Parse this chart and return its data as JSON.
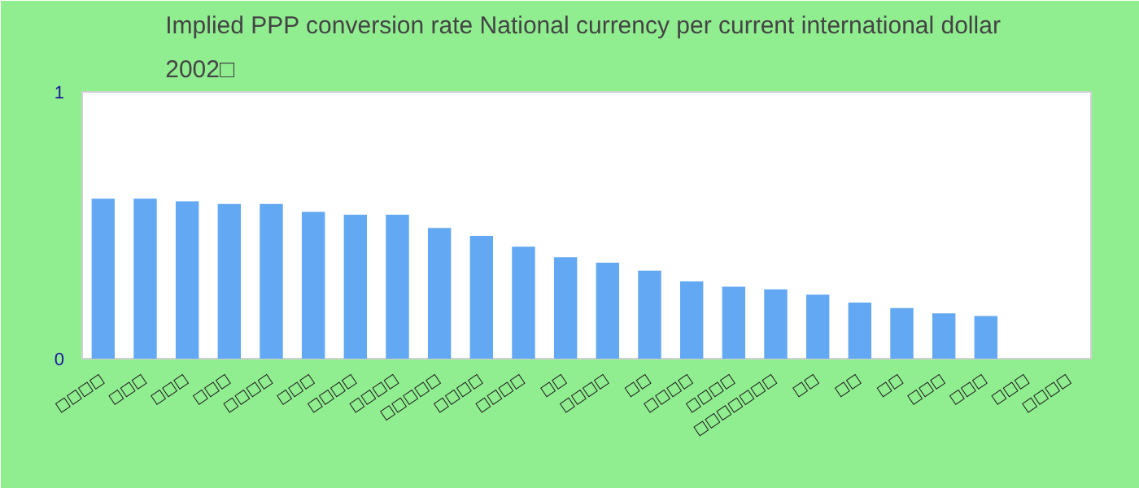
{
  "chart_data": {
    "type": "bar",
    "title": "Implied PPP conversion rate  National currency per current international dollar 2002□",
    "categories": [
      "□□□□",
      "□□□",
      "□□□",
      "□□□",
      "□□□□",
      "□□□",
      "□□□□",
      "□□□□",
      "□□□□□",
      "□□□□",
      "□□□□",
      "□□",
      "□□□□",
      "□□",
      "□□□□",
      "□□□□",
      "□□□□□□□",
      "□□",
      "□□",
      "□□",
      "□□□",
      "□□□",
      "□□□",
      "□□□□"
    ],
    "values": [
      0.6,
      0.6,
      0.59,
      0.58,
      0.58,
      0.55,
      0.54,
      0.54,
      0.49,
      0.46,
      0.42,
      0.38,
      0.36,
      0.33,
      0.29,
      0.27,
      0.26,
      0.24,
      0.21,
      0.19,
      0.17,
      0.16,
      null,
      null
    ],
    "color": "#63a8f2",
    "ylim": [
      0,
      1
    ],
    "yticks": [
      0,
      1
    ]
  }
}
